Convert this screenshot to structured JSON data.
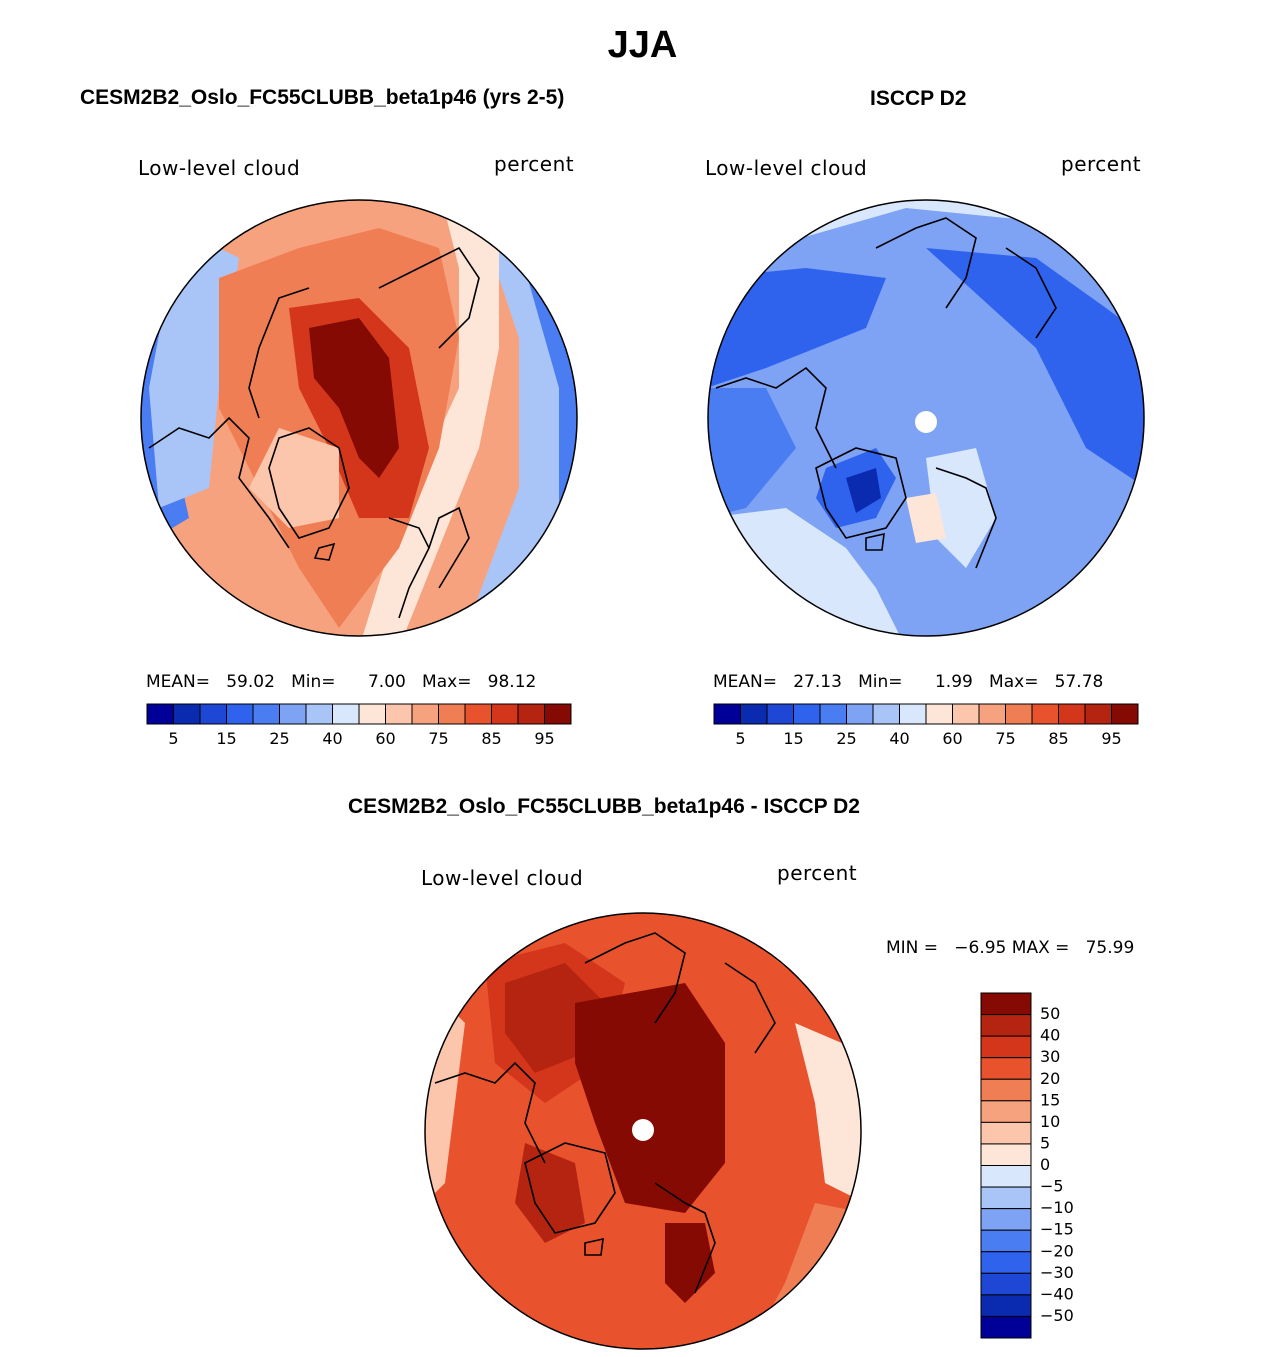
{
  "figure": {
    "title": "JJA",
    "variable_label": "Low-level cloud",
    "units_label": "percent"
  },
  "chart_data": [
    {
      "type": "heatmap",
      "projection": "north-polar-stereographic",
      "title": "CESM2B2_Oslo_FC55CLUBB_beta1p46 (yrs 2-5)",
      "left_label": "Low-level cloud",
      "right_label": "percent",
      "stats": {
        "mean_label": "MEAN=",
        "mean": "59.02",
        "min_label": "Min=",
        "min": "7.00",
        "max_label": "Max=",
        "max": "98.12"
      },
      "colorbar": {
        "orientation": "horizontal",
        "levels": [
          5,
          10,
          15,
          20,
          25,
          30,
          40,
          50,
          60,
          70,
          75,
          80,
          85,
          90,
          95
        ],
        "tick_labels": [
          "5",
          "15",
          "25",
          "40",
          "60",
          "75",
          "85",
          "95"
        ],
        "colors": [
          "#000099",
          "#0a2bb0",
          "#1f47d6",
          "#2f63ee",
          "#4a7df2",
          "#7ea3f5",
          "#a9c5f7",
          "#d8e7fb",
          "#fde6d8",
          "#fcc6ad",
          "#f7a27e",
          "#f07e55",
          "#e8522d",
          "#d4361c",
          "#b52410",
          "#850a04"
        ]
      },
      "field_description_levels": {
        "pole_region": 95,
        "central_arctic": 90,
        "siberia": 75,
        "europe": 70,
        "canada": 60,
        "pacific_rim": 30
      }
    },
    {
      "type": "heatmap",
      "projection": "north-polar-stereographic",
      "title": "ISCCP D2",
      "left_label": "Low-level cloud",
      "right_label": "percent",
      "stats": {
        "mean_label": "MEAN=",
        "mean": "27.13",
        "min_label": "Min=",
        "min": "1.99",
        "max_label": "Max=",
        "max": "57.78"
      },
      "colorbar": {
        "orientation": "horizontal",
        "levels": [
          5,
          10,
          15,
          20,
          25,
          30,
          40,
          50,
          60,
          70,
          75,
          80,
          85,
          90,
          95
        ],
        "tick_labels": [
          "5",
          "15",
          "25",
          "40",
          "60",
          "75",
          "85",
          "95"
        ],
        "colors": [
          "#000099",
          "#0a2bb0",
          "#1f47d6",
          "#2f63ee",
          "#4a7df2",
          "#7ea3f5",
          "#a9c5f7",
          "#d8e7fb",
          "#fde6d8",
          "#fcc6ad",
          "#f7a27e",
          "#f07e55",
          "#e8522d",
          "#d4361c",
          "#b52410",
          "#850a04"
        ]
      },
      "missing_pole": true
    },
    {
      "type": "heatmap",
      "projection": "north-polar-stereographic",
      "title": "CESM2B2_Oslo_FC55CLUBB_beta1p46 - ISCCP D2",
      "left_label": "Low-level cloud",
      "right_label": "percent",
      "stats": {
        "min_label": "MIN =",
        "min": "−6.95",
        "max_label": "MAX =",
        "max": "75.99"
      },
      "colorbar": {
        "orientation": "vertical",
        "levels": [
          -50,
          -40,
          -30,
          -20,
          -15,
          -10,
          -5,
          0,
          5,
          10,
          15,
          20,
          30,
          40,
          50
        ],
        "tick_labels": [
          "50",
          "40",
          "30",
          "20",
          "15",
          "10",
          "5",
          "0",
          "−5",
          "−10",
          "−15",
          "−20",
          "−30",
          "−40",
          "−50"
        ],
        "colors": [
          "#850a04",
          "#b52410",
          "#d4361c",
          "#e8522d",
          "#f07e55",
          "#f7a27e",
          "#fcc6ad",
          "#fde6d8",
          "#d8e7fb",
          "#a9c5f7",
          "#7ea3f5",
          "#4a7df2",
          "#2f63ee",
          "#1f47d6",
          "#0a2bb0",
          "#000099"
        ]
      },
      "missing_pole": true
    }
  ]
}
